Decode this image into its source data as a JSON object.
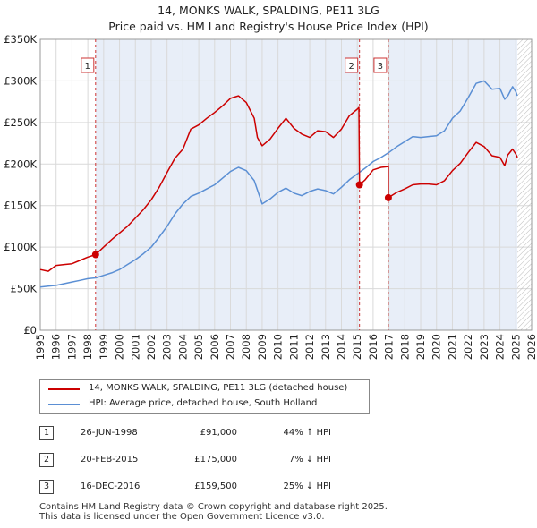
{
  "title": "14, MONKS WALK, SPALDING, PE11 3LG",
  "subtitle": "Price paid vs. HM Land Registry's House Price Index (HPI)",
  "colors": {
    "price_paid": "#cc0000",
    "hpi": "#5b8fd4",
    "sale_shade": "#e8eef8",
    "marker_line": "#cc3333"
  },
  "chart_data": {
    "type": "line",
    "title": "14, MONKS WALK, SPALDING, PE11 3LG",
    "subtitle": "Price paid vs. HM Land Registry's House Price Index (HPI)",
    "xlim": [
      1995,
      2026
    ],
    "ylim": [
      0,
      350000
    ],
    "x_ticks": [
      "1995",
      "1996",
      "1997",
      "1998",
      "1999",
      "2000",
      "2001",
      "2002",
      "2003",
      "2004",
      "2005",
      "2006",
      "2007",
      "2008",
      "2009",
      "2010",
      "2011",
      "2012",
      "2013",
      "2014",
      "2015",
      "2016",
      "2017",
      "2018",
      "2019",
      "2020",
      "2021",
      "2022",
      "2023",
      "2024",
      "2025",
      "2026"
    ],
    "y_ticks": [
      {
        "value": 0,
        "label": "£0"
      },
      {
        "value": 50000,
        "label": "£50K"
      },
      {
        "value": 100000,
        "label": "£100K"
      },
      {
        "value": 150000,
        "label": "£150K"
      },
      {
        "value": 200000,
        "label": "£200K"
      },
      {
        "value": 250000,
        "label": "£250K"
      },
      {
        "value": 300000,
        "label": "£300K"
      },
      {
        "value": 350000,
        "label": "£350K"
      }
    ],
    "grid": true,
    "data_end_year": 2025.1,
    "series": [
      {
        "name": "14, MONKS WALK, SPALDING, PE11 3LG (detached house)",
        "color": "#cc0000",
        "points": [
          [
            1995.0,
            73000
          ],
          [
            1995.5,
            71000
          ],
          [
            1996.0,
            78000
          ],
          [
            1996.5,
            79000
          ],
          [
            1997.0,
            80000
          ],
          [
            1997.5,
            84000
          ],
          [
            1998.0,
            88000
          ],
          [
            1998.49,
            91000
          ],
          [
            1999.0,
            100000
          ],
          [
            1999.5,
            109000
          ],
          [
            2000.0,
            117000
          ],
          [
            2000.5,
            125000
          ],
          [
            2001.0,
            135000
          ],
          [
            2001.5,
            145000
          ],
          [
            2002.0,
            157000
          ],
          [
            2002.5,
            172000
          ],
          [
            2003.0,
            190000
          ],
          [
            2003.5,
            207000
          ],
          [
            2004.0,
            218000
          ],
          [
            2004.5,
            242000
          ],
          [
            2005.0,
            247000
          ],
          [
            2005.5,
            255000
          ],
          [
            2006.0,
            262000
          ],
          [
            2006.5,
            270000
          ],
          [
            2007.0,
            279000
          ],
          [
            2007.5,
            282000
          ],
          [
            2008.0,
            274000
          ],
          [
            2008.5,
            255000
          ],
          [
            2008.7,
            232000
          ],
          [
            2009.0,
            222000
          ],
          [
            2009.5,
            230000
          ],
          [
            2010.0,
            243000
          ],
          [
            2010.5,
            255000
          ],
          [
            2011.0,
            243000
          ],
          [
            2011.5,
            236000
          ],
          [
            2012.0,
            232000
          ],
          [
            2012.5,
            240000
          ],
          [
            2013.0,
            239000
          ],
          [
            2013.5,
            232000
          ],
          [
            2014.0,
            242000
          ],
          [
            2014.5,
            258000
          ],
          [
            2015.0,
            266000
          ],
          [
            2015.1,
            268000
          ],
          [
            2015.14,
            175000
          ],
          [
            2015.5,
            181000
          ],
          [
            2016.0,
            193000
          ],
          [
            2016.5,
            196000
          ],
          [
            2016.96,
            197000
          ],
          [
            2016.96,
            159500
          ],
          [
            2017.5,
            166000
          ],
          [
            2018.0,
            170000
          ],
          [
            2018.5,
            175000
          ],
          [
            2019.0,
            176000
          ],
          [
            2019.5,
            176000
          ],
          [
            2020.0,
            175000
          ],
          [
            2020.5,
            180000
          ],
          [
            2021.0,
            192000
          ],
          [
            2021.5,
            201000
          ],
          [
            2022.0,
            214000
          ],
          [
            2022.5,
            226000
          ],
          [
            2023.0,
            221000
          ],
          [
            2023.5,
            210000
          ],
          [
            2024.0,
            208000
          ],
          [
            2024.3,
            198000
          ],
          [
            2024.5,
            211000
          ],
          [
            2024.8,
            218000
          ],
          [
            2025.0,
            212000
          ],
          [
            2025.1,
            208000
          ]
        ]
      },
      {
        "name": "HPI: Average price, detached house, South Holland",
        "color": "#5b8fd4",
        "points": [
          [
            1995.0,
            52000
          ],
          [
            1995.5,
            53000
          ],
          [
            1996.0,
            54000
          ],
          [
            1996.5,
            56000
          ],
          [
            1997.0,
            58000
          ],
          [
            1997.5,
            60000
          ],
          [
            1998.0,
            62000
          ],
          [
            1998.5,
            63000
          ],
          [
            1999.0,
            66000
          ],
          [
            1999.5,
            69000
          ],
          [
            2000.0,
            73000
          ],
          [
            2000.5,
            79000
          ],
          [
            2001.0,
            85000
          ],
          [
            2001.5,
            92000
          ],
          [
            2002.0,
            100000
          ],
          [
            2002.5,
            112000
          ],
          [
            2003.0,
            125000
          ],
          [
            2003.5,
            140000
          ],
          [
            2004.0,
            152000
          ],
          [
            2004.5,
            161000
          ],
          [
            2005.0,
            165000
          ],
          [
            2005.5,
            170000
          ],
          [
            2006.0,
            175000
          ],
          [
            2006.5,
            183000
          ],
          [
            2007.0,
            191000
          ],
          [
            2007.5,
            196000
          ],
          [
            2008.0,
            192000
          ],
          [
            2008.5,
            180000
          ],
          [
            2009.0,
            152000
          ],
          [
            2009.5,
            158000
          ],
          [
            2010.0,
            166000
          ],
          [
            2010.5,
            171000
          ],
          [
            2011.0,
            165000
          ],
          [
            2011.5,
            162000
          ],
          [
            2012.0,
            167000
          ],
          [
            2012.5,
            170000
          ],
          [
            2013.0,
            168000
          ],
          [
            2013.5,
            164000
          ],
          [
            2014.0,
            172000
          ],
          [
            2014.5,
            181000
          ],
          [
            2015.0,
            188000
          ],
          [
            2015.5,
            195000
          ],
          [
            2016.0,
            203000
          ],
          [
            2016.5,
            208000
          ],
          [
            2017.0,
            214000
          ],
          [
            2017.5,
            221000
          ],
          [
            2018.0,
            227000
          ],
          [
            2018.5,
            233000
          ],
          [
            2019.0,
            232000
          ],
          [
            2019.5,
            233000
          ],
          [
            2020.0,
            234000
          ],
          [
            2020.5,
            240000
          ],
          [
            2021.0,
            255000
          ],
          [
            2021.5,
            264000
          ],
          [
            2022.0,
            280000
          ],
          [
            2022.5,
            297000
          ],
          [
            2023.0,
            300000
          ],
          [
            2023.5,
            290000
          ],
          [
            2024.0,
            291000
          ],
          [
            2024.3,
            278000
          ],
          [
            2024.5,
            282000
          ],
          [
            2024.8,
            293000
          ],
          [
            2025.0,
            287000
          ],
          [
            2025.1,
            282000
          ]
        ]
      }
    ],
    "sales": [
      {
        "id": "1",
        "x": 1998.49,
        "price": 91000
      },
      {
        "id": "2",
        "x": 2015.14,
        "price": 175000
      },
      {
        "id": "3",
        "x": 2016.96,
        "price": 159500
      }
    ]
  },
  "legend": [
    {
      "label": "14, MONKS WALK, SPALDING, PE11 3LG (detached house)",
      "color": "#cc0000"
    },
    {
      "label": "HPI: Average price, detached house, South Holland",
      "color": "#5b8fd4"
    }
  ],
  "sales_table": [
    {
      "id": "1",
      "date": "26-JUN-1998",
      "price": "£91,000",
      "hpi": "44% ↑ HPI"
    },
    {
      "id": "2",
      "date": "20-FEB-2015",
      "price": "£175,000",
      "hpi": "7% ↓ HPI"
    },
    {
      "id": "3",
      "date": "16-DEC-2016",
      "price": "£159,500",
      "hpi": "25% ↓ HPI"
    }
  ],
  "footer": {
    "line1": "Contains HM Land Registry data © Crown copyright and database right 2025.",
    "line2": "This data is licensed under the Open Government Licence v3.0."
  }
}
